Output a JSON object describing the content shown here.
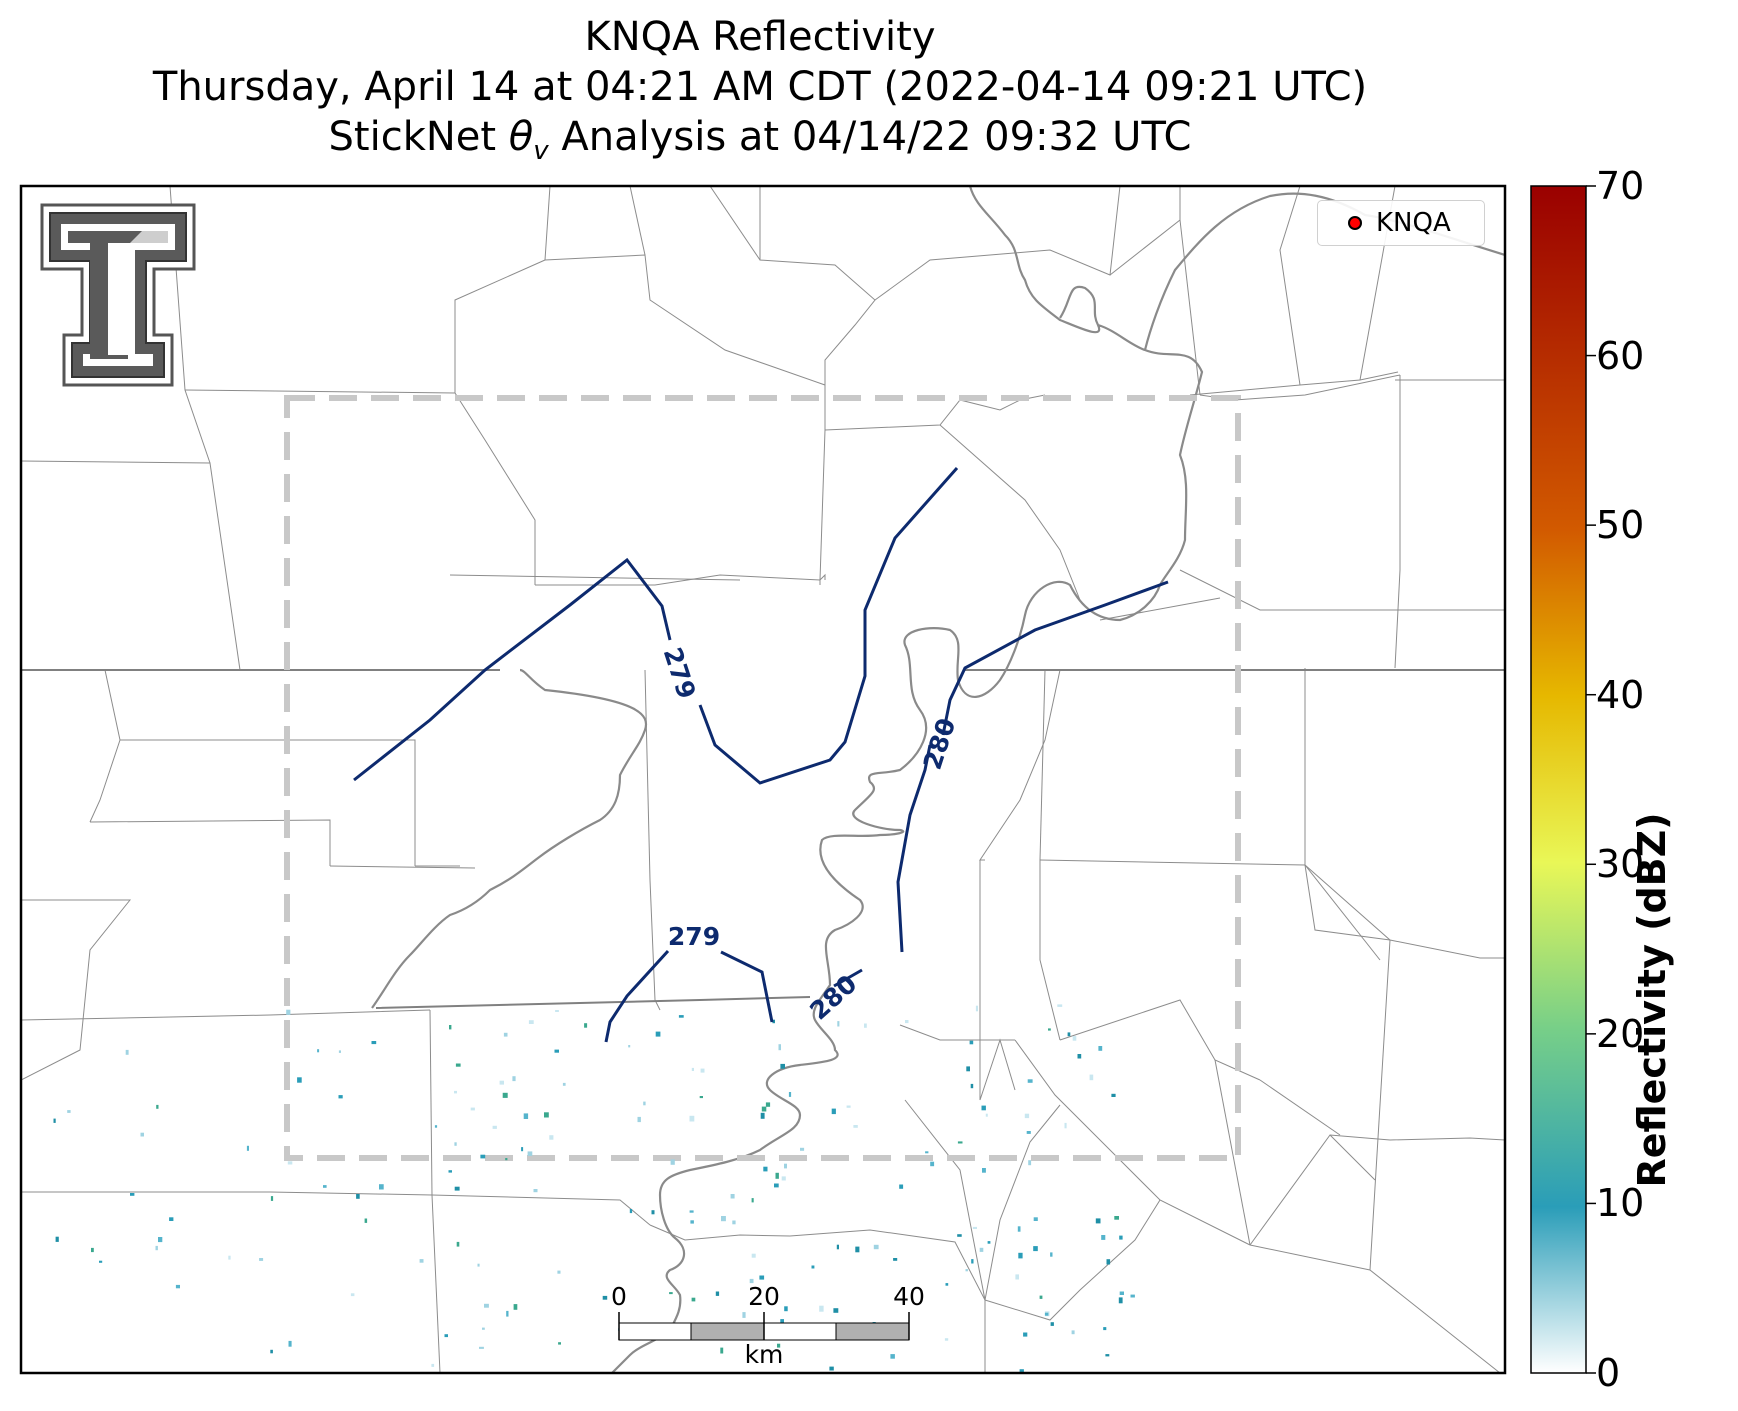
{
  "title": {
    "line1": "KNQA Reflectivity",
    "line2": "Thursday, April 14 at 04:21 AM CDT (2022-04-14 09:21 UTC)",
    "line3_prefix": "StickNet ",
    "line3_symbol": "θ",
    "line3_subscript": "v",
    "line3_suffix": " Analysis at 04/14/22 09:32 UTC"
  },
  "legend": {
    "label": "KNQA",
    "marker_color": "#ff0000"
  },
  "colorbar": {
    "label": "Reflectivity (dBZ)",
    "min": 0,
    "max": 70,
    "ticks": [
      "0",
      "10",
      "20",
      "30",
      "40",
      "50",
      "60",
      "70"
    ],
    "colors": [
      "#ffffff",
      "#2a9db8",
      "#77cf88",
      "#e9f757",
      "#e6b800",
      "#d25a00",
      "#9a0000"
    ]
  },
  "contours": {
    "color": "#0d2a6e",
    "labels": [
      {
        "text": "279",
        "angle": 72
      },
      {
        "text": "280",
        "angle": -72
      },
      {
        "text": "279",
        "angle": 0
      },
      {
        "text": "280",
        "angle": -42
      }
    ]
  },
  "scale_bar": {
    "unit": "km",
    "tick_labels": [
      "0",
      "20",
      "40"
    ]
  },
  "logo": {
    "name": "Texas Tech Double T",
    "fill": "#5a5a5a"
  },
  "analysis_domain": {
    "style": "dashed",
    "color": "#c8c8c8"
  },
  "colors": {
    "county_lines": "#8c8c8c",
    "state_lines": "#808080",
    "river": "#8a8a8a"
  }
}
